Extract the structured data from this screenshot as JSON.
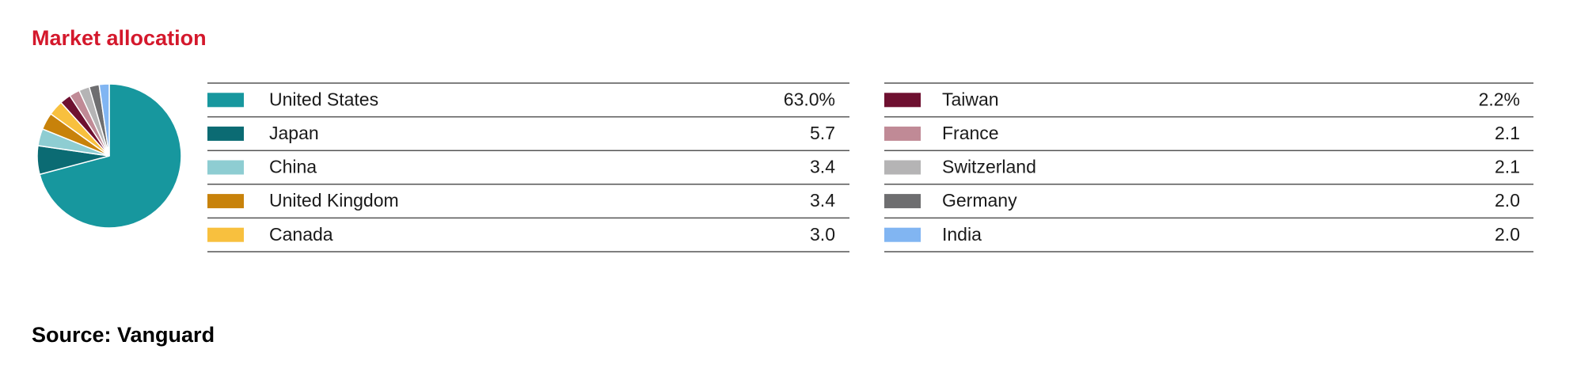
{
  "chart_data": {
    "type": "pie",
    "title": "Market allocation",
    "categories": [
      "United States",
      "Japan",
      "China",
      "United Kingdom",
      "Canada",
      "Taiwan",
      "France",
      "Switzerland",
      "Germany",
      "India"
    ],
    "values": [
      63.0,
      5.7,
      3.4,
      3.4,
      3.0,
      2.2,
      2.1,
      2.1,
      2.0,
      2.0
    ],
    "value_labels": [
      "63.0%",
      "5.7",
      "3.4",
      "3.4",
      "3.0",
      "2.2%",
      "2.1",
      "2.1",
      "2.0",
      "2.0"
    ],
    "colors": [
      "#17979e",
      "#0b6b73",
      "#8ecdd2",
      "#c8820a",
      "#f8c03e",
      "#6e1030",
      "#c08a96",
      "#b5b4b5",
      "#6e6e70",
      "#81b5f2"
    ],
    "source": "Source: Vanguard"
  }
}
